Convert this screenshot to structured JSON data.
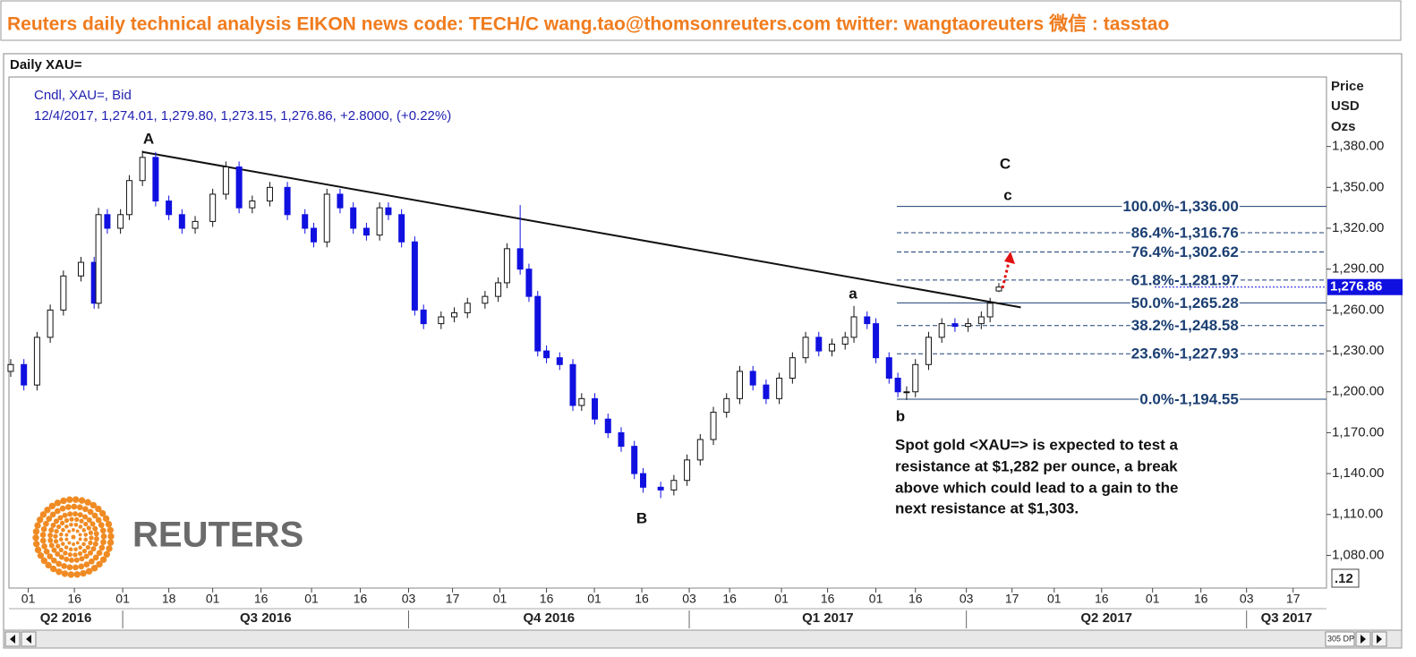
{
  "header": {
    "text": "Reuters daily technical analysis  EIKON news code: TECH/C  wang.tao@thomsonreuters.com  twitter:  wangtaoreuters   微信 : tasstao"
  },
  "chart_data": {
    "type": "candlestick",
    "title": "Daily XAU=",
    "info_lines": [
      "Cndl, XAU=, Bid",
      "12/4/2017, 1,274.01, 1,279.80, 1,273.15, 1,276.86, +2.8000, (+0.22%)"
    ],
    "y_axis_title": [
      "Price",
      "USD",
      "Ozs"
    ],
    "up_color": "#ffffff",
    "down_color": "#1010e0",
    "x": [
      0,
      3,
      6,
      9,
      12,
      16,
      19,
      20,
      22,
      25,
      27,
      30,
      33,
      36,
      39,
      42,
      46,
      49,
      52,
      55,
      59,
      63,
      67,
      69,
      72,
      75,
      78,
      81,
      84,
      86,
      89,
      92,
      94,
      98,
      101,
      104,
      108,
      111,
      113,
      116,
      118,
      120,
      122,
      125,
      128,
      130,
      133,
      136,
      139,
      142,
      144,
      148,
      151,
      154,
      157,
      160,
      163,
      166,
      169,
      172,
      175,
      178,
      181,
      184,
      187,
      190,
      192,
      195,
      197,
      200,
      202,
      204,
      206,
      209,
      212,
      215,
      218,
      221,
      223,
      225
    ],
    "open": [
      1215,
      1220,
      1205,
      1240,
      1260,
      1285,
      1295,
      1265,
      1330,
      1320,
      1330,
      1355,
      1372,
      1340,
      1330,
      1320,
      1325,
      1345,
      1365,
      1335,
      1340,
      1350,
      1330,
      1320,
      1310,
      1345,
      1335,
      1320,
      1315,
      1335,
      1330,
      1310,
      1260,
      1250,
      1255,
      1258,
      1265,
      1270,
      1280,
      1305,
      1290,
      1270,
      1230,
      1225,
      1220,
      1190,
      1195,
      1180,
      1170,
      1160,
      1140,
      1130,
      1128,
      1135,
      1150,
      1165,
      1185,
      1195,
      1215,
      1205,
      1195,
      1210,
      1225,
      1240,
      1230,
      1235,
      1240,
      1255,
      1250,
      1225,
      1210,
      1200,
      1200,
      1220,
      1240,
      1250,
      1248,
      1250,
      1255,
      1274.01
    ],
    "high": [
      1224,
      1224,
      1244,
      1264,
      1289,
      1299,
      1299,
      1335,
      1334,
      1334,
      1359,
      1377,
      1376,
      1344,
      1334,
      1329,
      1349,
      1369,
      1369,
      1344,
      1354,
      1354,
      1334,
      1324,
      1349,
      1349,
      1339,
      1324,
      1339,
      1339,
      1334,
      1314,
      1264,
      1259,
      1262,
      1269,
      1274,
      1284,
      1309,
      1337,
      1294,
      1274,
      1234,
      1229,
      1224,
      1199,
      1199,
      1184,
      1174,
      1164,
      1144,
      1134,
      1139,
      1154,
      1169,
      1189,
      1199,
      1219,
      1219,
      1209,
      1214,
      1229,
      1244,
      1244,
      1239,
      1244,
      1263,
      1259,
      1254,
      1229,
      1214,
      1204,
      1224,
      1244,
      1254,
      1254,
      1254,
      1259,
      1269,
      1279.8
    ],
    "low": [
      1211,
      1201,
      1201,
      1236,
      1256,
      1281,
      1261,
      1261,
      1316,
      1316,
      1326,
      1351,
      1336,
      1326,
      1316,
      1316,
      1321,
      1341,
      1331,
      1331,
      1336,
      1326,
      1316,
      1306,
      1306,
      1331,
      1316,
      1311,
      1311,
      1326,
      1306,
      1256,
      1246,
      1246,
      1251,
      1254,
      1261,
      1266,
      1276,
      1286,
      1266,
      1226,
      1221,
      1216,
      1186,
      1186,
      1176,
      1166,
      1156,
      1136,
      1126,
      1122,
      1124,
      1131,
      1146,
      1161,
      1181,
      1191,
      1201,
      1191,
      1191,
      1206,
      1221,
      1226,
      1226,
      1231,
      1236,
      1246,
      1221,
      1206,
      1196,
      1194,
      1196,
      1216,
      1236,
      1244,
      1244,
      1246,
      1251,
      1273.15
    ],
    "close": [
      1220,
      1205,
      1240,
      1260,
      1285,
      1295,
      1265,
      1330,
      1320,
      1330,
      1355,
      1372,
      1340,
      1330,
      1320,
      1325,
      1345,
      1365,
      1335,
      1340,
      1350,
      1330,
      1320,
      1310,
      1345,
      1335,
      1320,
      1315,
      1335,
      1330,
      1310,
      1260,
      1250,
      1255,
      1258,
      1265,
      1270,
      1280,
      1305,
      1290,
      1270,
      1230,
      1225,
      1220,
      1190,
      1195,
      1180,
      1170,
      1160,
      1140,
      1130,
      1128,
      1135,
      1150,
      1165,
      1185,
      1195,
      1215,
      1205,
      1195,
      1210,
      1225,
      1240,
      1230,
      1235,
      1240,
      1255,
      1250,
      1225,
      1210,
      1200,
      1200,
      1220,
      1240,
      1250,
      1248,
      1250,
      1255,
      1265,
      1276.86
    ],
    "xlim": [
      -0.4,
      299.6
    ],
    "ylim": [
      1056,
      1431
    ],
    "yticks": [
      {
        "value": 1380,
        "label": "1,380.00"
      },
      {
        "value": 1350,
        "label": "1,350.00"
      },
      {
        "value": 1320,
        "label": "1,320.00"
      },
      {
        "value": 1290,
        "label": "1,290.00"
      },
      {
        "value": 1260,
        "label": "1,260.00"
      },
      {
        "value": 1230,
        "label": "1,230.00"
      },
      {
        "value": 1200,
        "label": "1,200.00"
      },
      {
        "value": 1170,
        "label": "1,170.00"
      },
      {
        "value": 1140,
        "label": "1,140.00"
      },
      {
        "value": 1110,
        "label": "1,110.00"
      },
      {
        "value": 1080,
        "label": "1,080.00"
      }
    ],
    "xticks": [
      {
        "value": 4,
        "label": "01"
      },
      {
        "value": 14.5,
        "label": "16"
      },
      {
        "value": 25.5,
        "label": "01"
      },
      {
        "value": 36,
        "label": "18"
      },
      {
        "value": 46,
        "label": "01"
      },
      {
        "value": 57,
        "label": "16"
      },
      {
        "value": 68.5,
        "label": "01"
      },
      {
        "value": 79.6,
        "label": "16"
      },
      {
        "value": 90.6,
        "label": "03"
      },
      {
        "value": 100.6,
        "label": "17"
      },
      {
        "value": 111.4,
        "label": "01"
      },
      {
        "value": 122,
        "label": "16"
      },
      {
        "value": 132.9,
        "label": "01"
      },
      {
        "value": 143.7,
        "label": "16"
      },
      {
        "value": 154.5,
        "label": "03"
      },
      {
        "value": 163.7,
        "label": "16"
      },
      {
        "value": 175.5,
        "label": "01"
      },
      {
        "value": 186,
        "label": "16"
      },
      {
        "value": 197,
        "label": "01"
      },
      {
        "value": 206,
        "label": "16"
      },
      {
        "value": 217.6,
        "label": "03"
      },
      {
        "value": 228,
        "label": "17"
      },
      {
        "value": 237.6,
        "label": "01"
      },
      {
        "value": 248.4,
        "label": "16"
      },
      {
        "value": 260,
        "label": "01"
      },
      {
        "value": 271,
        "label": "16"
      },
      {
        "value": 281.4,
        "label": "03"
      },
      {
        "value": 292,
        "label": "17"
      }
    ],
    "quarter_ticks": [
      {
        "value": -43,
        "label": "Q2 2016"
      },
      {
        "value": 25.5,
        "label": "Q3 2016"
      },
      {
        "value": 90.6,
        "label": "Q4 2016"
      },
      {
        "value": 154.5,
        "label": "Q1 2017"
      },
      {
        "value": 217.6,
        "label": "Q2 2017"
      },
      {
        "value": 281.4,
        "label": "Q3 2017"
      }
    ],
    "last_price": {
      "value": 1276.86,
      "label": "1,276.86"
    },
    "trendline": {
      "x": [
        30,
        230
      ],
      "y": [
        1376,
        1262
      ]
    },
    "fibonacci": [
      {
        "ratio": "100.0%",
        "price": 1336,
        "price_label": "-1,336.00",
        "dashed": false
      },
      {
        "ratio": "86.4%",
        "price": 1316.76,
        "price_label": "-1,316.76",
        "dashed": true
      },
      {
        "ratio": "76.4%",
        "price": 1302.62,
        "price_label": "-1,302.62",
        "dashed": true
      },
      {
        "ratio": "61.8%",
        "price": 1281.97,
        "price_label": "-1,281.97",
        "dashed": true
      },
      {
        "ratio": "50.0%",
        "price": 1265.28,
        "price_label": "-1,265.28",
        "dashed": false
      },
      {
        "ratio": "38.2%",
        "price": 1248.58,
        "price_label": "-1,248.58",
        "dashed": true
      },
      {
        "ratio": "23.6%",
        "price": 1227.93,
        "price_label": "-1,227.93",
        "dashed": true
      },
      {
        "ratio": "0.0%",
        "price": 1194.55,
        "price_label": "-1,194.55",
        "dashed": false
      }
    ],
    "wave_labels": [
      "A",
      "B",
      "C",
      "a",
      "b",
      "c"
    ],
    "comment": [
      "Spot gold <XAU=> is expected to test a",
      "resistance at $1,282 per ounce,  a break",
      "above which could lead to a gain to the",
      "next resistance at $1,303."
    ],
    "logo_text": "REUTERS",
    "corner_box": ".12",
    "scroll_label": "305 DP"
  }
}
